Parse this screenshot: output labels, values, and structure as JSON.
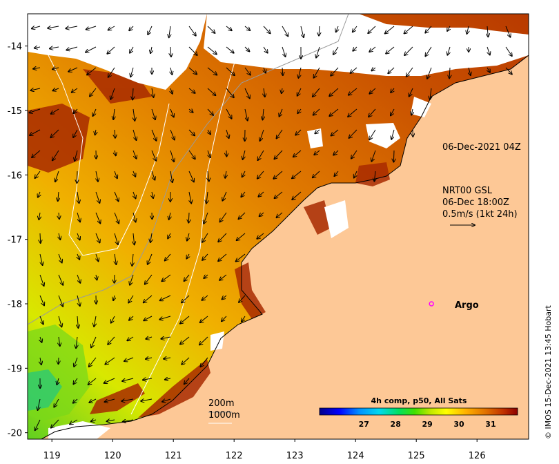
{
  "map": {
    "x_ticks": [
      "119",
      "120",
      "121",
      "122",
      "123",
      "124",
      "125",
      "126"
    ],
    "y_ticks": [
      "-14",
      "-15",
      "-16",
      "-17",
      "-18",
      "-19",
      "-20"
    ],
    "lon_range": [
      118.6,
      126.85
    ],
    "lat_range": [
      -20.1,
      -13.5
    ],
    "colors": {
      "land": "#fdc896",
      "cloud": "#ffffff",
      "coast": "#000000"
    }
  },
  "annotations": {
    "timestamp": "06-Dec-2021 04Z",
    "currents_title": "NRT00 GSL",
    "currents_time": "06-Dec 18:00Z",
    "currents_scale": "0.5m/s (1kt 24h)",
    "argo_label": "Argo",
    "contour_200": "200m",
    "contour_1000": "1000m",
    "credit": "© IMOS 15-Dec-2021 13:45 Hobart"
  },
  "colorbar": {
    "title": "4h comp, p50, All Sats",
    "ticks": [
      "27",
      "28",
      "29",
      "30",
      "31"
    ],
    "stops": [
      "#00008b",
      "#0000ff",
      "#0090ff",
      "#00d8f0",
      "#00e060",
      "#40e000",
      "#c0e800",
      "#ffff00",
      "#ffb000",
      "#e07000",
      "#c03000",
      "#8b0000"
    ]
  },
  "argo": {
    "lon": 125.25,
    "lat": -18.0,
    "color": "#ff00ff"
  }
}
